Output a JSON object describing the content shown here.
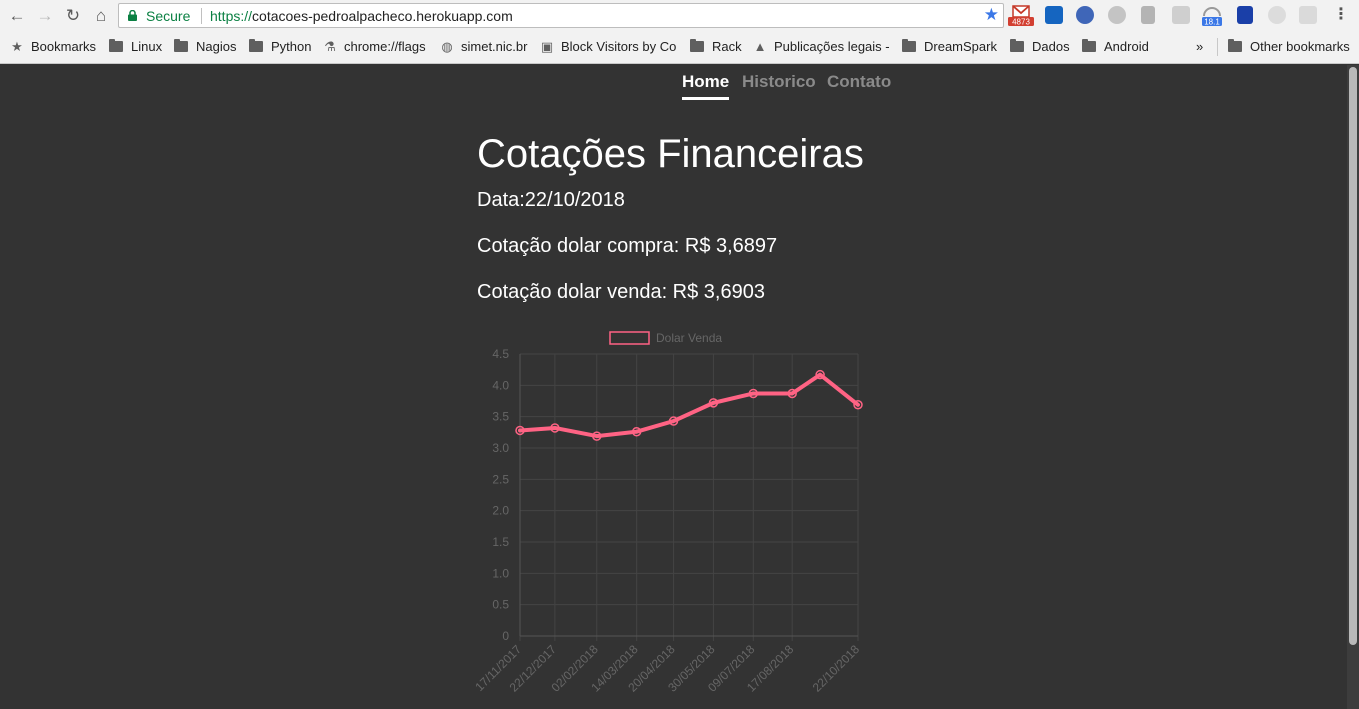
{
  "browser": {
    "secure_label": "Secure",
    "url_scheme": "https://",
    "url_host": "cotacoes-pedroalpacheco.herokuapp.com",
    "gmail_badge": "4873",
    "ext_badge": "18.1",
    "bookmarks": [
      {
        "label": "Bookmarks",
        "icon": "star-icon"
      },
      {
        "label": "Linux",
        "icon": "folder-icon"
      },
      {
        "label": "Nagios",
        "icon": "folder-icon"
      },
      {
        "label": "Python",
        "icon": "folder-icon"
      },
      {
        "label": "chrome://flags",
        "icon": "flask-icon"
      },
      {
        "label": "simet.nic.br",
        "icon": "globe-icon"
      },
      {
        "label": "Block Visitors by Co",
        "icon": "ip-icon"
      },
      {
        "label": "Rack",
        "icon": "folder-icon"
      },
      {
        "label": "Publicações legais -",
        "icon": "page-icon"
      },
      {
        "label": "DreamSpark",
        "icon": "folder-icon"
      },
      {
        "label": "Dados",
        "icon": "folder-icon"
      },
      {
        "label": "Android",
        "icon": "folder-icon"
      }
    ],
    "overflow_label": "»",
    "other_bookmarks": "Other bookmarks"
  },
  "nav": {
    "items": [
      "Home",
      "Historico",
      "Contato"
    ],
    "active": "Home"
  },
  "main": {
    "title": "Cotações Financeiras",
    "date_line": "Data:22/10/2018",
    "buy_line": "Cotação dolar compra: R$ 3,6897",
    "sell_line": "Cotação dolar venda: R$ 3,6903"
  },
  "colors": {
    "background": "#333333",
    "series": "#ff6384",
    "secure": "#0b8043"
  },
  "chart_data": {
    "type": "line",
    "legend": [
      "Dolar Venda"
    ],
    "legend_position": "top",
    "grid": true,
    "ylim": [
      0,
      4.5
    ],
    "y_ticks": [
      "0",
      "0.5",
      "1.0",
      "1.5",
      "2.0",
      "2.5",
      "3.0",
      "3.5",
      "4.0",
      "4.5"
    ],
    "x_tick_labels": [
      "17/11/2017",
      "22/12/2017",
      "02/02/2018",
      "14/03/2018",
      "20/04/2018",
      "30/05/2018",
      "09/07/2018",
      "17/08/2018",
      "22/10/2018"
    ],
    "series": [
      {
        "name": "Dolar Venda",
        "x": [
          "17/11/2017",
          "22/12/2017",
          "02/02/2018",
          "14/03/2018",
          "20/04/2018",
          "30/05/2018",
          "09/07/2018",
          "17/08/2018",
          "14/09/2018",
          "22/10/2018"
        ],
        "values": [
          3.28,
          3.32,
          3.19,
          3.26,
          3.43,
          3.72,
          3.87,
          3.87,
          4.17,
          3.69
        ]
      }
    ]
  }
}
